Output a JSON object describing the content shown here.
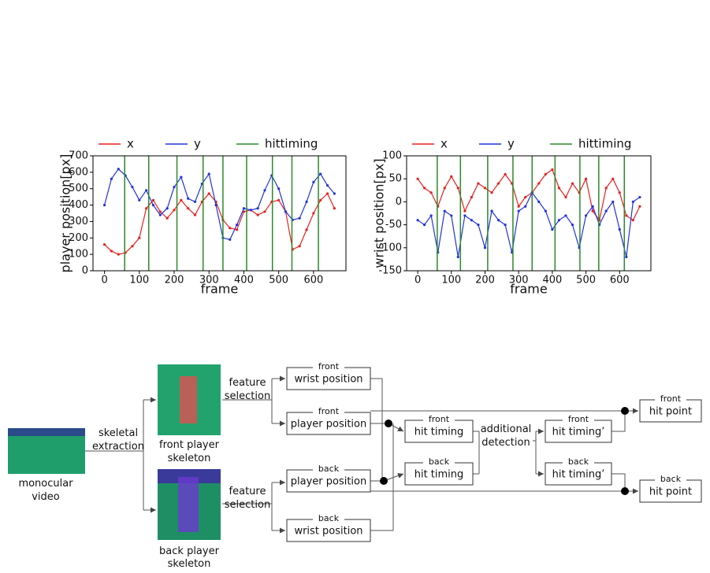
{
  "chart_data": [
    {
      "type": "line",
      "xlabel": "frame",
      "ylabel": "player position[px]",
      "x": [
        0,
        20,
        40,
        60,
        80,
        100,
        120,
        140,
        160,
        180,
        200,
        220,
        240,
        260,
        280,
        300,
        320,
        340,
        360,
        380,
        400,
        420,
        440,
        460,
        480,
        500,
        520,
        540,
        560,
        580,
        600,
        620,
        640,
        660
      ],
      "xlim": [
        -33,
        693
      ],
      "xticks": [
        0,
        100,
        200,
        300,
        400,
        500,
        600
      ],
      "ylim": [
        0,
        700
      ],
      "yticks": [
        0,
        100,
        200,
        300,
        400,
        500,
        600,
        700
      ],
      "series": [
        {
          "name": "x",
          "color": "#e8201f",
          "values": [
            160,
            120,
            100,
            110,
            150,
            200,
            380,
            430,
            360,
            320,
            370,
            430,
            380,
            340,
            420,
            470,
            420,
            310,
            260,
            250,
            360,
            370,
            340,
            360,
            420,
            430,
            360,
            130,
            150,
            250,
            350,
            430,
            470,
            380
          ]
        },
        {
          "name": "y",
          "color": "#2233dd",
          "values": [
            400,
            560,
            620,
            580,
            510,
            430,
            490,
            400,
            340,
            380,
            510,
            570,
            440,
            420,
            530,
            590,
            400,
            200,
            190,
            280,
            380,
            370,
            380,
            490,
            580,
            500,
            360,
            310,
            320,
            420,
            540,
            590,
            520,
            470
          ]
        }
      ],
      "hits": {
        "name": "hittiming",
        "color": "#2a8a2a",
        "values": [
          58,
          127,
          208,
          283,
          340,
          408,
          482,
          538,
          614
        ]
      }
    },
    {
      "type": "line",
      "xlabel": "frame",
      "ylabel": "wrist position[px]",
      "x": [
        0,
        20,
        40,
        60,
        80,
        100,
        120,
        140,
        160,
        180,
        200,
        220,
        240,
        260,
        280,
        300,
        320,
        340,
        360,
        380,
        400,
        420,
        440,
        460,
        480,
        500,
        520,
        540,
        560,
        580,
        600,
        620,
        640,
        660
      ],
      "xlim": [
        -33,
        693
      ],
      "xticks": [
        0,
        100,
        200,
        300,
        400,
        500,
        600
      ],
      "ylim": [
        -150,
        100
      ],
      "yticks": [
        -150,
        -100,
        -50,
        0,
        50,
        100
      ],
      "series": [
        {
          "name": "x",
          "color": "#e8201f",
          "values": [
            50,
            30,
            20,
            -10,
            30,
            55,
            30,
            -20,
            10,
            40,
            30,
            20,
            40,
            60,
            40,
            -10,
            10,
            20,
            40,
            60,
            70,
            30,
            10,
            40,
            20,
            50,
            -20,
            -40,
            30,
            50,
            20,
            -30,
            -40,
            -10
          ]
        },
        {
          "name": "y",
          "color": "#2233dd",
          "values": [
            -40,
            -50,
            -30,
            -110,
            -20,
            -30,
            -120,
            -30,
            -40,
            -50,
            -100,
            -20,
            -40,
            -50,
            -110,
            -20,
            -10,
            20,
            0,
            -20,
            -60,
            -40,
            -30,
            -50,
            -100,
            -30,
            -10,
            -50,
            -20,
            0,
            -60,
            -120,
            0,
            10
          ]
        }
      ],
      "hits": {
        "name": "hittiming",
        "color": "#2a8a2a",
        "values": [
          58,
          127,
          208,
          283,
          340,
          408,
          482,
          538,
          614
        ]
      }
    }
  ],
  "diagram": {
    "texts": [
      "skeletal extraction",
      "monocular video",
      "front player skeleton",
      "back player skeleton",
      "feature selection",
      "feature selection",
      "additional detection"
    ],
    "boxes": [
      {
        "tag": "front",
        "label": "wrist position"
      },
      {
        "tag": "front",
        "label": "player position"
      },
      {
        "tag": "back",
        "label": "player position"
      },
      {
        "tag": "back",
        "label": "wrist position"
      },
      {
        "tag": "front",
        "label": "hit timing"
      },
      {
        "tag": "back",
        "label": "hit timing"
      },
      {
        "tag": "front",
        "label": "hit timing’"
      },
      {
        "tag": "back",
        "label": "hit timing’"
      },
      {
        "tag": "front",
        "label": "hit point"
      },
      {
        "tag": "back",
        "label": "hit point"
      }
    ]
  }
}
